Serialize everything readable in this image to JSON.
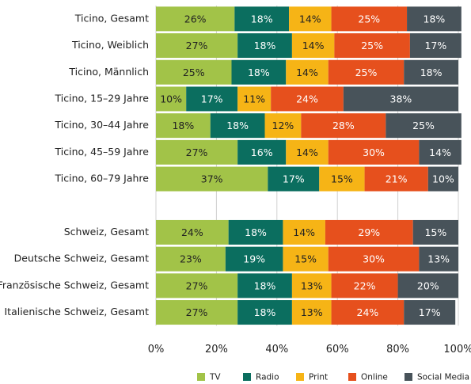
{
  "chart_data": {
    "type": "stacked_bar_horizontal",
    "categories": [
      "Ticino, Gesamt",
      "Ticino, Weiblich",
      "Ticino, Männlich",
      "Ticino, 15–29 Jahre",
      "Ticino, 30–44 Jahre",
      "Ticino, 45–59 Jahre",
      "Ticino, 60–79 Jahre",
      null,
      "Schweiz, Gesamt",
      "Deutsche Schweiz, Gesamt",
      "Französische Schweiz, Gesamt",
      "Italienische Schweiz, Gesamt"
    ],
    "series": [
      {
        "name": "TV",
        "color": "#a2c348",
        "values": [
          26,
          27,
          25,
          10,
          18,
          27,
          37,
          null,
          24,
          23,
          27,
          27
        ],
        "value_labels": [
          "26%",
          "27%",
          "25%",
          "10%",
          "18%",
          "27%",
          "37%",
          null,
          "24%",
          "23%",
          "27%",
          "27%"
        ]
      },
      {
        "name": "Radio",
        "color": "#0b6e5f",
        "values": [
          18,
          18,
          18,
          17,
          18,
          16,
          17,
          null,
          18,
          19,
          18,
          18
        ],
        "value_labels": [
          "18%",
          "18%",
          "18%",
          "17%",
          "18%",
          "16%",
          "17%",
          null,
          "18%",
          "19%",
          "18%",
          "18%"
        ]
      },
      {
        "name": "Print",
        "color": "#f6b416",
        "values": [
          14,
          14,
          14,
          11,
          12,
          14,
          15,
          null,
          14,
          15,
          13,
          13
        ],
        "value_labels": [
          "14%",
          "14%",
          "14%",
          "11%",
          "12%",
          "14%",
          "15%",
          null,
          "14%",
          "15%",
          "13%",
          "13%"
        ]
      },
      {
        "name": "Online",
        "color": "#e6501d",
        "values": [
          25,
          25,
          25,
          24,
          28,
          30,
          21,
          null,
          29,
          30,
          22,
          24
        ],
        "value_labels": [
          "25%",
          "25%",
          "25%",
          "24%",
          "28%",
          "30%",
          "21%",
          null,
          "29%",
          "30%",
          "22%",
          "24%"
        ]
      },
      {
        "name": "Social Media",
        "color": "#48535a",
        "values": [
          18,
          17,
          18,
          38,
          25,
          14,
          10,
          null,
          15,
          13,
          20,
          17
        ],
        "value_labels": [
          "18%",
          "17%",
          "18%",
          "38%",
          "25%",
          "14%",
          "10%",
          null,
          "15%",
          "13%",
          "20%",
          "17%"
        ]
      }
    ],
    "xlim": [
      0,
      100
    ],
    "xticks": [
      {
        "value": 0,
        "label": "0%"
      },
      {
        "value": 20,
        "label": "20%"
      },
      {
        "value": 40,
        "label": "40%"
      },
      {
        "value": 60,
        "label": "60%"
      },
      {
        "value": 80,
        "label": "80%"
      },
      {
        "value": 100,
        "label": "100%"
      }
    ],
    "grid": true,
    "legend": "bottom"
  }
}
